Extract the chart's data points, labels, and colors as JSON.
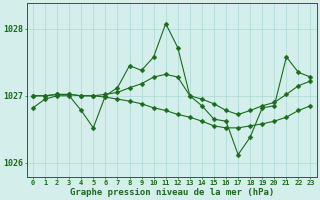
{
  "title": "Graphe pression niveau de la mer (hPa)",
  "background_color": "#d4eeec",
  "grid_color": "#aad8d4",
  "line_color": "#1a6b1a",
  "x": [
    0,
    1,
    2,
    3,
    4,
    5,
    6,
    7,
    8,
    9,
    10,
    11,
    12,
    13,
    14,
    15,
    16,
    17,
    18,
    19,
    20,
    21,
    22,
    23
  ],
  "series1": [
    1026.82,
    1026.95,
    1027.0,
    1027.0,
    1026.78,
    1026.52,
    1027.0,
    1027.12,
    1027.45,
    1027.38,
    1027.58,
    1028.08,
    1027.72,
    1027.0,
    1026.85,
    1026.65,
    1026.62,
    1026.12,
    1026.38,
    1026.82,
    1026.85,
    1027.58,
    1027.35,
    1027.28
  ],
  "series2": [
    1027.0,
    1027.0,
    1027.02,
    1027.02,
    1027.0,
    1027.0,
    1027.02,
    1027.05,
    1027.12,
    1027.18,
    1027.28,
    1027.32,
    1027.28,
    1027.0,
    1026.95,
    1026.88,
    1026.78,
    1026.72,
    1026.78,
    1026.85,
    1026.9,
    1027.02,
    1027.15,
    1027.22
  ],
  "series3": [
    1027.0,
    1027.0,
    1027.02,
    1027.02,
    1027.0,
    1027.0,
    1026.98,
    1026.95,
    1026.92,
    1026.88,
    1026.82,
    1026.78,
    1026.72,
    1026.68,
    1026.62,
    1026.55,
    1026.52,
    1026.52,
    1026.55,
    1026.58,
    1026.62,
    1026.68,
    1026.78,
    1026.85
  ],
  "ylim_min": 1025.78,
  "ylim_max": 1028.38,
  "yticks": [
    1026,
    1027,
    1028
  ],
  "xticks": [
    0,
    1,
    2,
    3,
    4,
    5,
    6,
    7,
    8,
    9,
    10,
    11,
    12,
    13,
    14,
    15,
    16,
    17,
    18,
    19,
    20,
    21,
    22,
    23
  ],
  "figsize": [
    3.2,
    2.0
  ],
  "dpi": 100
}
